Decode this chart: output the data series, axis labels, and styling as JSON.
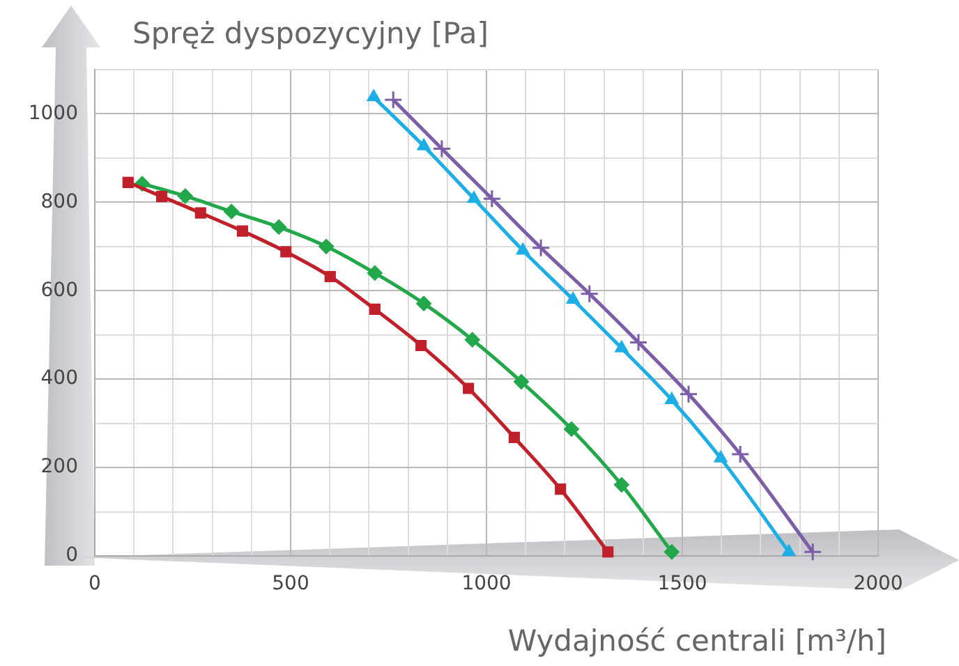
{
  "chart_data": {
    "type": "line",
    "xlabel": "Wydajność centrali [m³/h]",
    "ylabel": "Spręż dyspozycyjny [Pa]",
    "xlim": [
      0,
      2000
    ],
    "ylim": [
      0,
      1100
    ],
    "xticks": [
      0,
      {
        "value": 100,
        "label": null
      },
      {
        "value": 200,
        "label": null
      },
      {
        "value": 300,
        "label": null
      },
      {
        "value": 400,
        "label": null
      },
      500,
      {
        "value": 600,
        "label": null
      },
      {
        "value": 700,
        "label": null
      },
      {
        "value": 800,
        "label": null
      },
      {
        "value": 900,
        "label": null
      },
      1000,
      {
        "value": 1100,
        "label": null
      },
      {
        "value": 1200,
        "label": null
      },
      {
        "value": 1300,
        "label": null
      },
      {
        "value": 1400,
        "label": null
      },
      1500,
      {
        "value": 1600,
        "label": null
      },
      {
        "value": 1700,
        "label": null
      },
      {
        "value": 1800,
        "label": null
      },
      {
        "value": 1900,
        "label": null
      },
      2000
    ],
    "yticks": [
      0,
      {
        "value": 100,
        "label": null
      },
      200,
      {
        "value": 300,
        "label": null
      },
      400,
      {
        "value": 500,
        "label": null
      },
      600,
      {
        "value": 700,
        "label": null
      },
      800,
      {
        "value": 900,
        "label": null
      },
      1000,
      {
        "value": 1100,
        "label": null
      }
    ],
    "grid": true,
    "legend": false,
    "line_style": "solid",
    "series": [
      {
        "color": "#c0202a",
        "marker": "square",
        "x": [
          85,
          171,
          270,
          377,
          488,
          601,
          715,
          833,
          954,
          1071,
          1189,
          1310
        ],
        "values": [
          845,
          813,
          776,
          735,
          688,
          632,
          558,
          476,
          379,
          268,
          151,
          9
        ]
      },
      {
        "color": "#22a84a",
        "marker": "diamond",
        "x": [
          121,
          231,
          349,
          470,
          591,
          715,
          840,
          964,
          1089,
          1217,
          1345,
          1473
        ],
        "values": [
          842,
          814,
          779,
          744,
          700,
          640,
          571,
          489,
          394,
          287,
          161,
          9
        ]
      },
      {
        "color": "#1eaee6",
        "marker": "triangle",
        "x": [
          712,
          840,
          968,
          1093,
          1221,
          1345,
          1473,
          1598,
          1772
        ],
        "values": [
          1038,
          927,
          808,
          691,
          580,
          470,
          353,
          221,
          9
        ]
      },
      {
        "color": "#7b5ea7",
        "marker": "cross",
        "x": [
          762,
          886,
          1014,
          1139,
          1263,
          1388,
          1516,
          1648,
          1833
        ],
        "values": [
          1032,
          921,
          808,
          697,
          593,
          483,
          366,
          230,
          9
        ]
      }
    ]
  }
}
